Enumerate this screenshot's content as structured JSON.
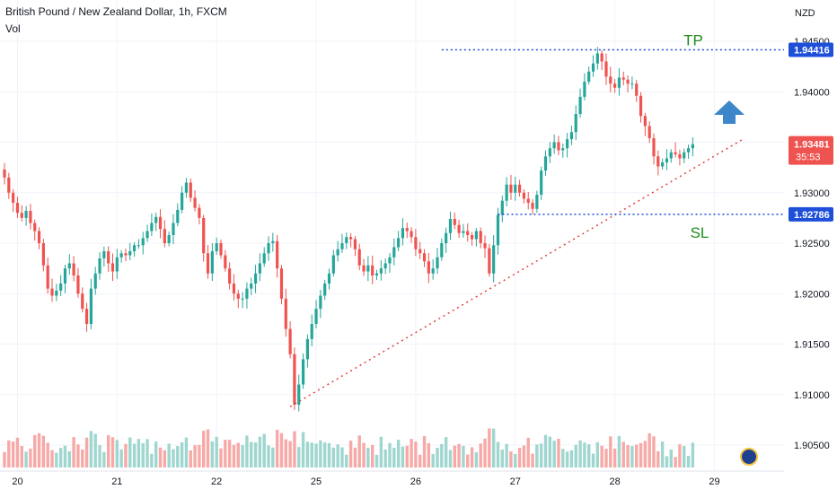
{
  "header": {
    "title": "British Pound / New Zealand Dollar, 1h, FXCM",
    "volume_label": "Vol"
  },
  "price_axis": {
    "currency": "NZD",
    "ticks": [
      "1.94500",
      "1.94000",
      "1.93500",
      "1.93000",
      "1.92500",
      "1.92000",
      "1.91500",
      "1.91000",
      "1.90500"
    ],
    "tick_values": [
      1.945,
      1.94,
      1.935,
      1.93,
      1.925,
      1.92,
      1.915,
      1.91,
      1.905
    ]
  },
  "time_axis": {
    "labels": [
      "20",
      "21",
      "22",
      "25",
      "26",
      "27",
      "28",
      "29"
    ],
    "label_bar_index": [
      3,
      26,
      49,
      72,
      95,
      118,
      141,
      164
    ]
  },
  "annotations": {
    "tp": {
      "text": "TP",
      "price": 1.94416,
      "price_label": "1.94416",
      "start_bar": 101
    },
    "sl": {
      "text": "SL",
      "price": 1.92786,
      "price_label": "1.92786",
      "start_bar": 114
    },
    "current_price": {
      "value": 1.93481,
      "label": "1.93481",
      "countdown": "35:53"
    },
    "trendline": {
      "from": {
        "bar": 66,
        "price": 1.9088
      },
      "to": {
        "bar": 171,
        "price": 1.9354
      }
    },
    "arrow_up": {
      "bar": 162,
      "price": 1.9385
    }
  },
  "colors": {
    "up": "#26a69a",
    "down": "#ef5350",
    "vol_up": "#9fd6cf",
    "vol_down": "#f6a9a7",
    "level_line": "#1e4fd8",
    "label_box": "#1e4fd8",
    "trend": "#e0433f",
    "annotation_text": "#1e8c1e",
    "arrow": "#3d86c9",
    "grid": "#f0f3fa",
    "axis_text": "#131722"
  },
  "chart_data": {
    "type": "candlestick",
    "title": "British Pound / New Zealand Dollar, 1h, FXCM",
    "price_unit": "NZD",
    "closes": [
      1.9315,
      1.93,
      1.929,
      1.928,
      1.9275,
      1.9282,
      1.927,
      1.9262,
      1.925,
      1.9228,
      1.9205,
      1.9198,
      1.9203,
      1.921,
      1.9225,
      1.923,
      1.9218,
      1.92,
      1.9185,
      1.917,
      1.9205,
      1.922,
      1.9235,
      1.9242,
      1.923,
      1.9222,
      1.9236,
      1.924,
      1.9238,
      1.9242,
      1.9248,
      1.9248,
      1.9255,
      1.9262,
      1.927,
      1.9276,
      1.9264,
      1.925,
      1.9258,
      1.927,
      1.9283,
      1.93,
      1.931,
      1.9295,
      1.9285,
      1.9275,
      1.924,
      1.922,
      1.9242,
      1.925,
      1.9238,
      1.9225,
      1.921,
      1.92,
      1.9195,
      1.9195,
      1.9205,
      1.921,
      1.922,
      1.923,
      1.924,
      1.925,
      1.9252,
      1.9225,
      1.9195,
      1.9165,
      1.914,
      1.909,
      1.911,
      1.9135,
      1.9155,
      1.917,
      1.9185,
      1.9198,
      1.921,
      1.922,
      1.9238,
      1.9244,
      1.925,
      1.9256,
      1.9254,
      1.9244,
      1.9228,
      1.9222,
      1.9228,
      1.9218,
      1.922,
      1.9225,
      1.923,
      1.9236,
      1.9246,
      1.9255,
      1.9265,
      1.9262,
      1.9256,
      1.9244,
      1.924,
      1.9232,
      1.922,
      1.9225,
      1.9236,
      1.925,
      1.926,
      1.9274,
      1.9268,
      1.926,
      1.9262,
      1.9258,
      1.9254,
      1.9262,
      1.925,
      1.9245,
      1.922,
      1.9248,
      1.9278,
      1.9292,
      1.9308,
      1.93,
      1.9308,
      1.93,
      1.9294,
      1.929,
      1.9284,
      1.9298,
      1.9322,
      1.9336,
      1.9344,
      1.935,
      1.9342,
      1.9344,
      1.9353,
      1.936,
      1.9378,
      1.9395,
      1.941,
      1.942,
      1.9428,
      1.9438,
      1.943,
      1.9415,
      1.9408,
      1.9404,
      1.9414,
      1.9412,
      1.9408,
      1.9408,
      1.9396,
      1.9376,
      1.9366,
      1.9354,
      1.9336,
      1.9326,
      1.933,
      1.9334,
      1.934,
      1.9338,
      1.9334,
      1.934,
      1.9344,
      1.9348
    ]
  }
}
